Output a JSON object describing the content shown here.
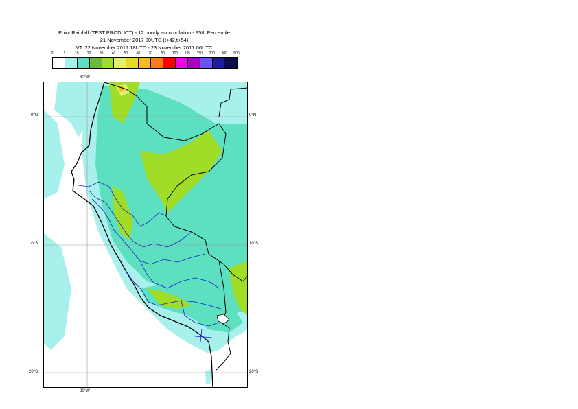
{
  "header": {
    "title_line1": "Point Rainfall (TEST PRODUCT) - 12 hourly accumulation - 95th Percentile",
    "title_line2": "21 November 2017 00UTC (t+42,t+54)",
    "title_line3": "VT: 22 November 2017 18UTC - 23 November 2017 06UTC"
  },
  "legend": {
    "labels": [
      "0",
      "1",
      "10",
      "20",
      "30",
      "40",
      "50",
      "60",
      "70",
      "80",
      "100",
      "125",
      "150",
      "200",
      "300",
      "500"
    ],
    "colors": [
      "#ffffff",
      "#a8f0ec",
      "#5ce0c0",
      "#6cbc3c",
      "#a0dc28",
      "#e0f070",
      "#e4dc1c",
      "#f8bc14",
      "#fc7c0c",
      "#fc0000",
      "#f000f0",
      "#a800c8",
      "#6c50fc",
      "#1c1c9c",
      "#0c0c50"
    ]
  },
  "axes": {
    "top_lon": "80°W",
    "bottom_lon": "80°W",
    "lat_0": "0°N",
    "lat_10": "10°S",
    "lat_20": "20°S"
  }
}
